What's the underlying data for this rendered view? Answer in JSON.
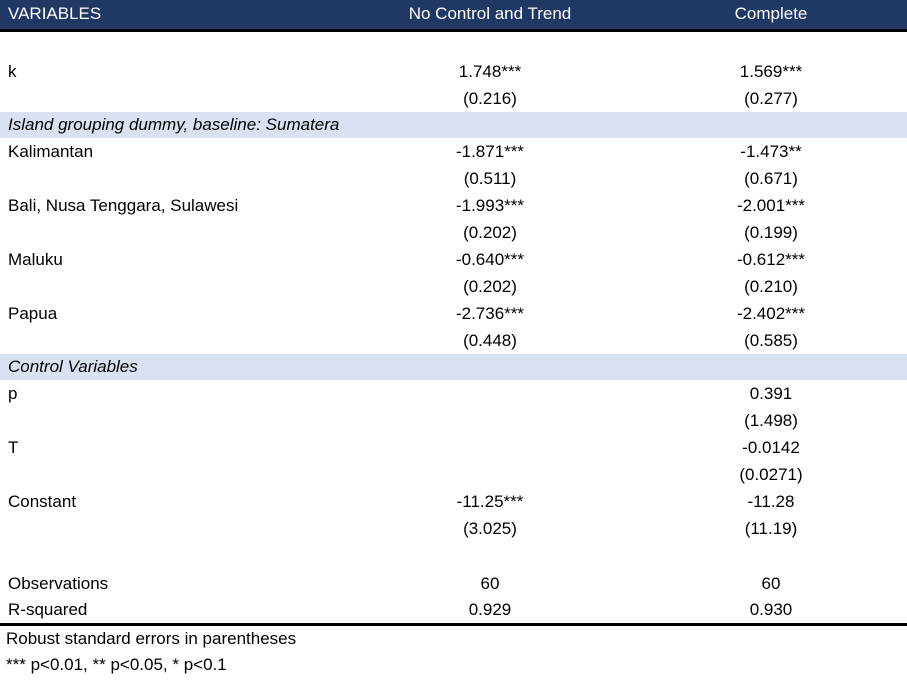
{
  "header": {
    "col1": "VARIABLES",
    "col2": "No Control and Trend",
    "col3": "Complete"
  },
  "sections": {
    "island": "Island grouping dummy, baseline: Sumatera",
    "controls": "Control Variables"
  },
  "coefficients": [
    {
      "name": "k",
      "no_control_trend": "1.748***",
      "no_control_trend_se": "(0.216)",
      "complete": "1.569***",
      "complete_se": "(0.277)"
    },
    {
      "name": "Kalimantan",
      "no_control_trend": "-1.871***",
      "no_control_trend_se": "(0.511)",
      "complete": "-1.473**",
      "complete_se": "(0.671)"
    },
    {
      "name": "Bali, Nusa Tenggara, Sulawesi",
      "no_control_trend": "-1.993***",
      "no_control_trend_se": "(0.202)",
      "complete": "-2.001***",
      "complete_se": "(0.199)"
    },
    {
      "name": "Maluku",
      "no_control_trend": "-0.640***",
      "no_control_trend_se": "(0.202)",
      "complete": "-0.612***",
      "complete_se": "(0.210)"
    },
    {
      "name": "Papua",
      "no_control_trend": "-2.736***",
      "no_control_trend_se": "(0.448)",
      "complete": "-2.402***",
      "complete_se": "(0.585)"
    },
    {
      "name": "p",
      "no_control_trend": "",
      "no_control_trend_se": "",
      "complete": "0.391",
      "complete_se": "(1.498)"
    },
    {
      "name": "T",
      "no_control_trend": "",
      "no_control_trend_se": "",
      "complete": "-0.0142",
      "complete_se": "(0.0271)"
    },
    {
      "name": "Constant",
      "no_control_trend": "-11.25***",
      "no_control_trend_se": "(3.025)",
      "complete": "-11.28",
      "complete_se": "(11.19)"
    }
  ],
  "stats": [
    {
      "name": "Observations",
      "no_control_trend": "60",
      "complete": "60"
    },
    {
      "name": "R-squared",
      "no_control_trend": "0.929",
      "complete": "0.930"
    }
  ],
  "notes": [
    "Robust standard errors in parentheses",
    "*** p<0.01, ** p<0.05, * p<0.1"
  ],
  "colors": {
    "header_bg": "#1F3864",
    "header_text": "#FFFFFF",
    "section_bg": "#D9E2F3",
    "rule_color": "#000000"
  }
}
